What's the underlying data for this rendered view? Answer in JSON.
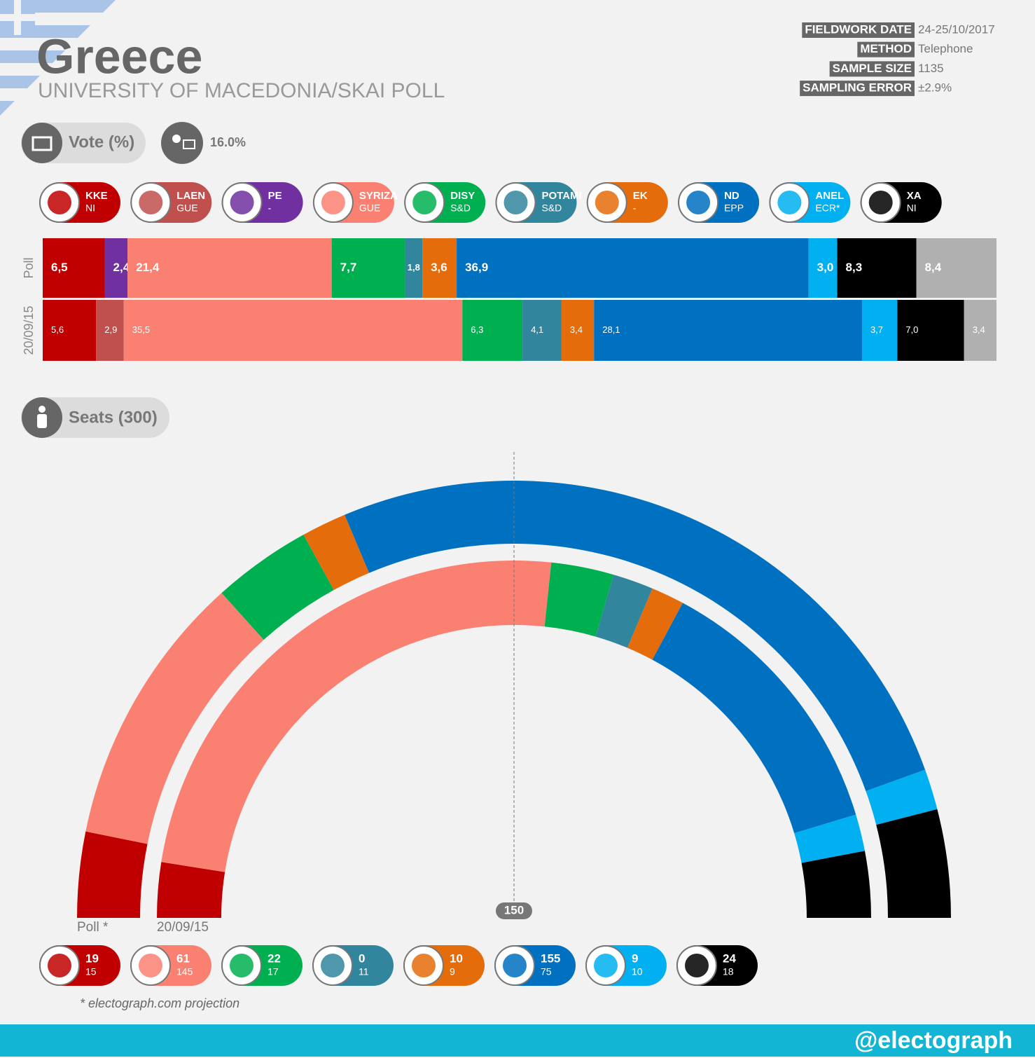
{
  "header": {
    "title": "Greece",
    "subtitle": "UNIVERSITY OF MACEDONIA/SKAI POLL"
  },
  "info": [
    {
      "label": "FIELDWORK DATE",
      "value": "24-25/10/2017"
    },
    {
      "label": "METHOD",
      "value": "Telephone"
    },
    {
      "label": "SAMPLE SIZE",
      "value": "1135"
    },
    {
      "label": "SAMPLING ERROR",
      "value": "±2.9%"
    }
  ],
  "chart_data": [
    {
      "type": "stacked-bar",
      "title": "Vote (%)",
      "undecided": "16.0%",
      "categories": [
        "Poll",
        "20/09/15"
      ],
      "xlim": [
        0,
        100
      ],
      "series": [
        {
          "name": "KKE",
          "group": "NI",
          "color": "#c00000",
          "values": [
            6.5,
            5.6
          ],
          "value_labels": [
            "6,5",
            "5,6"
          ]
        },
        {
          "name": "LAEN",
          "group": "GUE",
          "color": "#c0504d",
          "values": [
            null,
            2.9
          ],
          "value_labels": [
            null,
            "2,9"
          ]
        },
        {
          "name": "PE",
          "group": "-",
          "color": "#7030a0",
          "values": [
            2.4,
            null
          ],
          "value_labels": [
            "2,4",
            null
          ]
        },
        {
          "name": "SYRIZA",
          "group": "GUE",
          "color": "#fa8072",
          "values": [
            21.4,
            35.5
          ],
          "value_labels": [
            "21,4",
            "35,5"
          ]
        },
        {
          "name": "DISY",
          "group": "S&D",
          "color": "#00b050",
          "values": [
            7.7,
            6.3
          ],
          "value_labels": [
            "7,7",
            "6,3"
          ]
        },
        {
          "name": "POTAMI",
          "group": "S&D",
          "color": "#31859c",
          "values": [
            1.8,
            4.1
          ],
          "value_labels": [
            "1,8",
            "4,1"
          ]
        },
        {
          "name": "EK",
          "group": "-",
          "color": "#e46c0a",
          "values": [
            3.6,
            3.4
          ],
          "value_labels": [
            "3,6",
            "3,4"
          ]
        },
        {
          "name": "ND",
          "group": "EPP",
          "color": "#0070c0",
          "values": [
            36.9,
            28.1
          ],
          "value_labels": [
            "36,9",
            "28,1"
          ]
        },
        {
          "name": "ANEL",
          "group": "ECR*",
          "color": "#00b0f0",
          "values": [
            3.0,
            3.7
          ],
          "value_labels": [
            "3,0",
            "3,7"
          ]
        },
        {
          "name": "XA",
          "group": "NI",
          "color": "#000000",
          "values": [
            8.3,
            7.0
          ],
          "value_labels": [
            "8,3",
            "7,0"
          ]
        },
        {
          "color": "#b0b0b0",
          "values": [
            8.4,
            3.4
          ],
          "value_labels": [
            "8,4",
            "3,4"
          ]
        }
      ]
    },
    {
      "type": "parliament",
      "title": "Seats (300)",
      "categories": [
        "Poll *",
        "20/09/15"
      ],
      "xlim": [
        0,
        300
      ],
      "majority": 150,
      "note": "* electograph.com projection",
      "series": [
        {
          "color": "#c00000",
          "values": [
            19,
            15
          ]
        },
        {
          "color": "#fa8072",
          "values": [
            61,
            145
          ]
        },
        {
          "color": "#00b050",
          "values": [
            22,
            17
          ]
        },
        {
          "color": "#31859c",
          "values": [
            0,
            11
          ]
        },
        {
          "color": "#e46c0a",
          "values": [
            10,
            9
          ]
        },
        {
          "color": "#0070c0",
          "values": [
            155,
            75
          ]
        },
        {
          "color": "#00b0f0",
          "values": [
            9,
            10
          ]
        },
        {
          "color": "#000000",
          "values": [
            24,
            18
          ]
        }
      ]
    }
  ],
  "footer": "@electograph"
}
